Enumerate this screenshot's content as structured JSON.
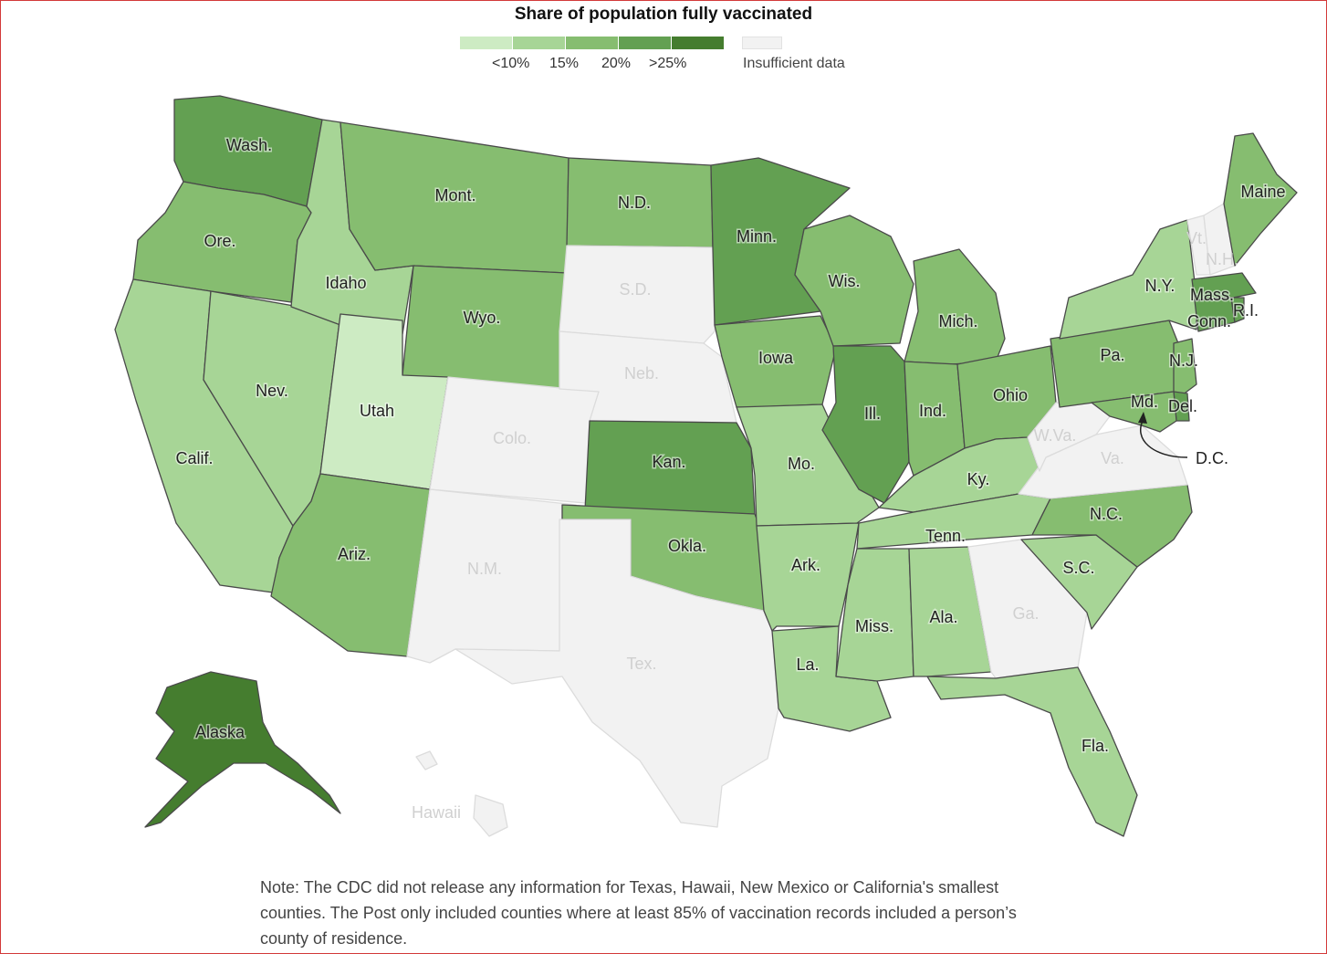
{
  "title": "Share of population fully vaccinated",
  "legend": {
    "bins": [
      {
        "color": "#cdebc3",
        "label": "<10%"
      },
      {
        "color": "#a7d596",
        "label": "15%"
      },
      {
        "color": "#86bd70",
        "label": "20%"
      },
      {
        "color": "#63a052",
        "label": ">25%"
      },
      {
        "color": "#457d2f",
        "label": ""
      }
    ],
    "insufficient": {
      "color": "#f2f2f2",
      "label": "Insufficient data"
    }
  },
  "states": {
    "wa": {
      "label": "Wash.",
      "bin": 3
    },
    "or": {
      "label": "Ore.",
      "bin": 2
    },
    "ca": {
      "label": "Calif.",
      "bin": 1
    },
    "nv": {
      "label": "Nev.",
      "bin": 1
    },
    "id": {
      "label": "Idaho",
      "bin": 1
    },
    "mt": {
      "label": "Mont.",
      "bin": 2
    },
    "wy": {
      "label": "Wyo.",
      "bin": 2
    },
    "ut": {
      "label": "Utah",
      "bin": 0
    },
    "az": {
      "label": "Ariz.",
      "bin": 2
    },
    "co": {
      "label": "Colo.",
      "bin": -1
    },
    "nm": {
      "label": "N.M.",
      "bin": -1
    },
    "nd": {
      "label": "N.D.",
      "bin": 2
    },
    "sd": {
      "label": "S.D.",
      "bin": -1
    },
    "ne": {
      "label": "Neb.",
      "bin": -1
    },
    "ks": {
      "label": "Kan.",
      "bin": 3
    },
    "ok": {
      "label": "Okla.",
      "bin": 2
    },
    "tx": {
      "label": "Tex.",
      "bin": -1
    },
    "mn": {
      "label": "Minn.",
      "bin": 3
    },
    "ia": {
      "label": "Iowa",
      "bin": 2
    },
    "mo": {
      "label": "Mo.",
      "bin": 1
    },
    "ar": {
      "label": "Ark.",
      "bin": 1
    },
    "la": {
      "label": "La.",
      "bin": 1
    },
    "wi": {
      "label": "Wis.",
      "bin": 2
    },
    "il": {
      "label": "Ill.",
      "bin": 3
    },
    "mi": {
      "label": "Mich.",
      "bin": 2
    },
    "in": {
      "label": "Ind.",
      "bin": 2
    },
    "oh": {
      "label": "Ohio",
      "bin": 2
    },
    "ky": {
      "label": "Ky.",
      "bin": 1
    },
    "tn": {
      "label": "Tenn.",
      "bin": 1
    },
    "ms": {
      "label": "Miss.",
      "bin": 1
    },
    "al": {
      "label": "Ala.",
      "bin": 1
    },
    "ga": {
      "label": "Ga.",
      "bin": -1
    },
    "fl": {
      "label": "Fla.",
      "bin": 1
    },
    "sc": {
      "label": "S.C.",
      "bin": 1
    },
    "nc": {
      "label": "N.C.",
      "bin": 2
    },
    "va": {
      "label": "Va.",
      "bin": -1
    },
    "wv": {
      "label": "W.Va.",
      "bin": -1
    },
    "pa": {
      "label": "Pa.",
      "bin": 2
    },
    "ny": {
      "label": "N.Y.",
      "bin": 1
    },
    "nj": {
      "label": "N.J.",
      "bin": 2
    },
    "de": {
      "label": "Del.",
      "bin": 3
    },
    "md": {
      "label": "Md.",
      "bin": 2
    },
    "dc": {
      "label": "D.C.",
      "bin": 2
    },
    "ct": {
      "label": "Conn.",
      "bin": 3
    },
    "ri": {
      "label": "R.I.",
      "bin": 3
    },
    "ma": {
      "label": "Mass.",
      "bin": 3
    },
    "vt": {
      "label": "Vt.",
      "bin": -1
    },
    "nh": {
      "label": "N.H.",
      "bin": -1
    },
    "me": {
      "label": "Maine",
      "bin": 2
    },
    "ak": {
      "label": "Alaska",
      "bin": 4
    },
    "hi": {
      "label": "Hawaii",
      "bin": -1
    }
  },
  "note": "Note: The CDC did not release any information for Texas, Hawaii, New Mexico or California's smallest counties. The Post only included counties where at least 85% of vaccination records included a person’s county of residence."
}
